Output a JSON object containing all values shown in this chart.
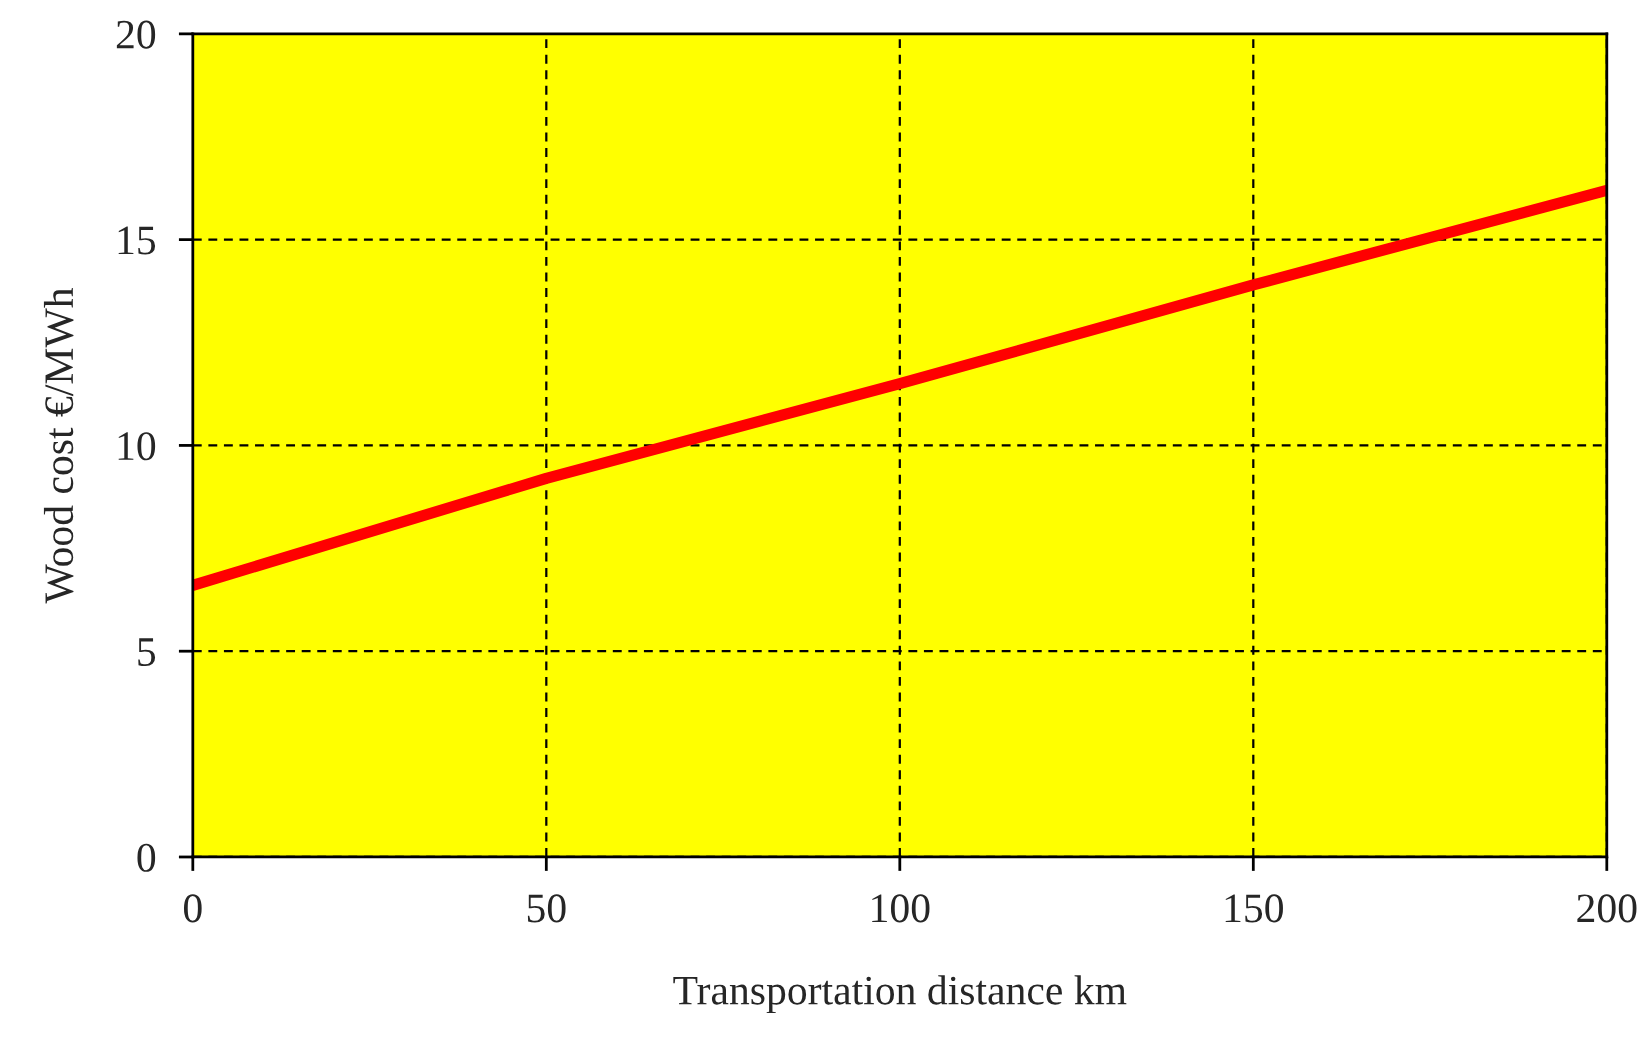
{
  "chart_data": {
    "type": "line",
    "xlabel": "Transportation distance km",
    "ylabel": "Wood cost €/MWh",
    "x": [
      0,
      50,
      100,
      150,
      200
    ],
    "series": [
      {
        "color": "#ff0000",
        "values": [
          6.6,
          9.2,
          11.5,
          13.9,
          16.2
        ]
      }
    ],
    "xlim": [
      0,
      200
    ],
    "xticks": [
      0,
      50,
      100,
      150,
      200
    ],
    "ylim": [
      0,
      20
    ],
    "yticks": [
      0,
      5,
      10,
      15,
      20
    ],
    "grid": true,
    "line_style": "solid"
  }
}
